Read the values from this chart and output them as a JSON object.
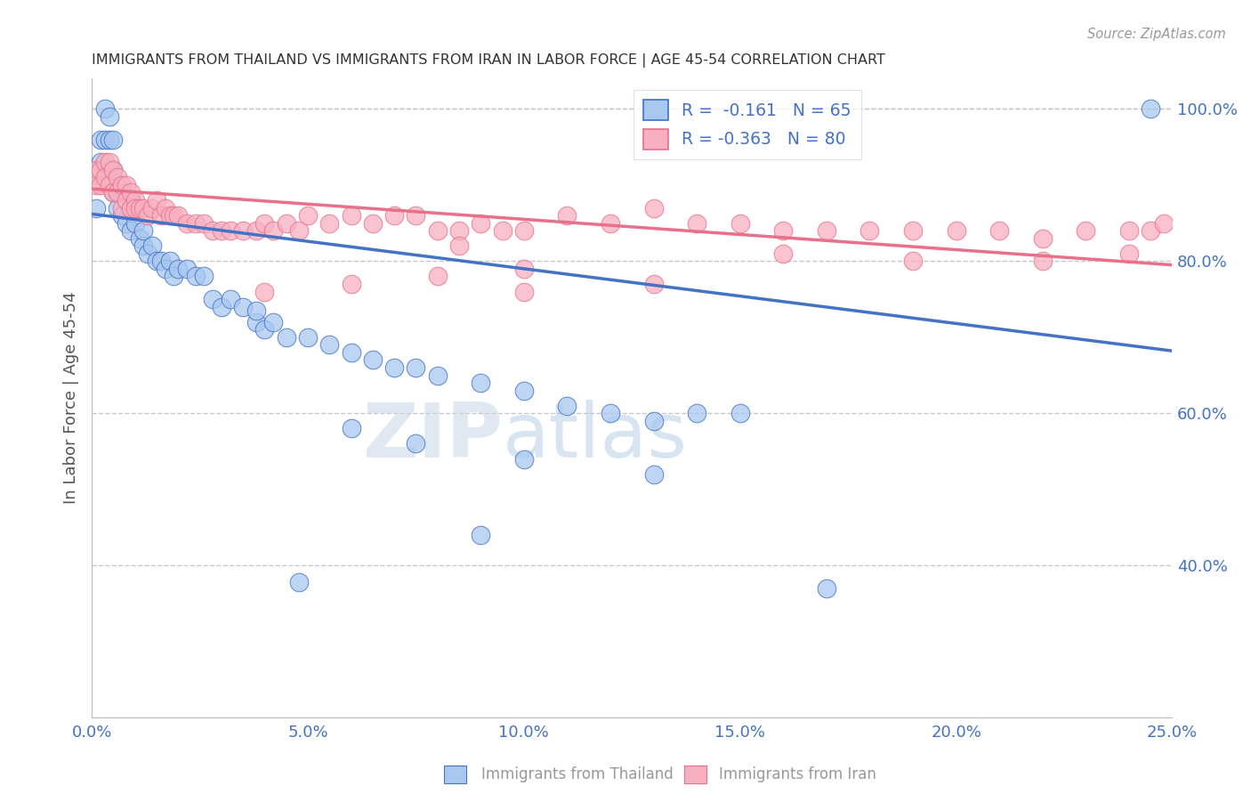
{
  "title": "IMMIGRANTS FROM THAILAND VS IMMIGRANTS FROM IRAN IN LABOR FORCE | AGE 45-54 CORRELATION CHART",
  "source": "Source: ZipAtlas.com",
  "ylabel": "In Labor Force | Age 45-54",
  "legend_labels": [
    "Immigrants from Thailand",
    "Immigrants from Iran"
  ],
  "r_thailand": -0.161,
  "n_thailand": 65,
  "r_iran": -0.363,
  "n_iran": 80,
  "xmin": 0.0,
  "xmax": 0.25,
  "ymin": 0.2,
  "ymax": 1.04,
  "color_thailand": "#A8C8F0",
  "color_iran": "#F8B0C0",
  "color_trend_thailand": "#4472C4",
  "color_trend_iran": "#E8708A",
  "background_color": "#FFFFFF",
  "grid_color": "#C8C8C8",
  "xticks": [
    0.0,
    0.05,
    0.1,
    0.15,
    0.2,
    0.25
  ],
  "yticks_right": [
    0.4,
    0.6,
    0.8,
    1.0
  ],
  "th_intercept": 0.862,
  "th_slope": -0.72,
  "ir_intercept": 0.895,
  "ir_slope": -0.4,
  "thailand_x": [
    0.001,
    0.002,
    0.002,
    0.003,
    0.003,
    0.004,
    0.004,
    0.005,
    0.005,
    0.005,
    0.006,
    0.006,
    0.007,
    0.007,
    0.008,
    0.008,
    0.009,
    0.009,
    0.01,
    0.01,
    0.011,
    0.012,
    0.012,
    0.013,
    0.014,
    0.015,
    0.016,
    0.017,
    0.018,
    0.019,
    0.02,
    0.022,
    0.024,
    0.026,
    0.028,
    0.03,
    0.032,
    0.035,
    0.038,
    0.04,
    0.042,
    0.045,
    0.05,
    0.055,
    0.06,
    0.065,
    0.07,
    0.075,
    0.08,
    0.09,
    0.1,
    0.11,
    0.12,
    0.13,
    0.14,
    0.15,
    0.06,
    0.075,
    0.1,
    0.13,
    0.048,
    0.09,
    0.17,
    0.245,
    0.038
  ],
  "thailand_y": [
    0.87,
    0.96,
    0.93,
    1.0,
    0.96,
    0.96,
    0.99,
    0.96,
    0.92,
    0.89,
    0.89,
    0.87,
    0.89,
    0.86,
    0.88,
    0.85,
    0.88,
    0.84,
    0.87,
    0.85,
    0.83,
    0.82,
    0.84,
    0.81,
    0.82,
    0.8,
    0.8,
    0.79,
    0.8,
    0.78,
    0.79,
    0.79,
    0.78,
    0.78,
    0.75,
    0.74,
    0.75,
    0.74,
    0.72,
    0.71,
    0.72,
    0.7,
    0.7,
    0.69,
    0.68,
    0.67,
    0.66,
    0.66,
    0.65,
    0.64,
    0.63,
    0.61,
    0.6,
    0.59,
    0.6,
    0.6,
    0.58,
    0.56,
    0.54,
    0.52,
    0.378,
    0.44,
    0.37,
    1.0,
    0.735
  ],
  "iran_x": [
    0.001,
    0.001,
    0.002,
    0.002,
    0.003,
    0.003,
    0.004,
    0.004,
    0.005,
    0.005,
    0.006,
    0.006,
    0.007,
    0.007,
    0.008,
    0.008,
    0.009,
    0.009,
    0.01,
    0.01,
    0.011,
    0.012,
    0.013,
    0.014,
    0.015,
    0.016,
    0.017,
    0.018,
    0.019,
    0.02,
    0.022,
    0.024,
    0.026,
    0.028,
    0.03,
    0.032,
    0.035,
    0.038,
    0.04,
    0.042,
    0.045,
    0.048,
    0.05,
    0.055,
    0.06,
    0.065,
    0.07,
    0.075,
    0.08,
    0.085,
    0.09,
    0.095,
    0.1,
    0.11,
    0.12,
    0.13,
    0.14,
    0.15,
    0.16,
    0.17,
    0.18,
    0.19,
    0.2,
    0.21,
    0.22,
    0.23,
    0.24,
    0.245,
    0.248,
    0.085,
    0.1,
    0.13,
    0.16,
    0.19,
    0.22,
    0.24,
    0.04,
    0.06,
    0.08,
    0.1
  ],
  "iran_y": [
    0.92,
    0.9,
    0.92,
    0.9,
    0.93,
    0.91,
    0.93,
    0.9,
    0.92,
    0.89,
    0.91,
    0.89,
    0.9,
    0.87,
    0.9,
    0.88,
    0.89,
    0.87,
    0.88,
    0.87,
    0.87,
    0.87,
    0.86,
    0.87,
    0.88,
    0.86,
    0.87,
    0.86,
    0.86,
    0.86,
    0.85,
    0.85,
    0.85,
    0.84,
    0.84,
    0.84,
    0.84,
    0.84,
    0.85,
    0.84,
    0.85,
    0.84,
    0.86,
    0.85,
    0.86,
    0.85,
    0.86,
    0.86,
    0.84,
    0.84,
    0.85,
    0.84,
    0.84,
    0.86,
    0.85,
    0.87,
    0.85,
    0.85,
    0.84,
    0.84,
    0.84,
    0.84,
    0.84,
    0.84,
    0.83,
    0.84,
    0.84,
    0.84,
    0.85,
    0.82,
    0.79,
    0.77,
    0.81,
    0.8,
    0.8,
    0.81,
    0.76,
    0.77,
    0.78,
    0.76
  ]
}
